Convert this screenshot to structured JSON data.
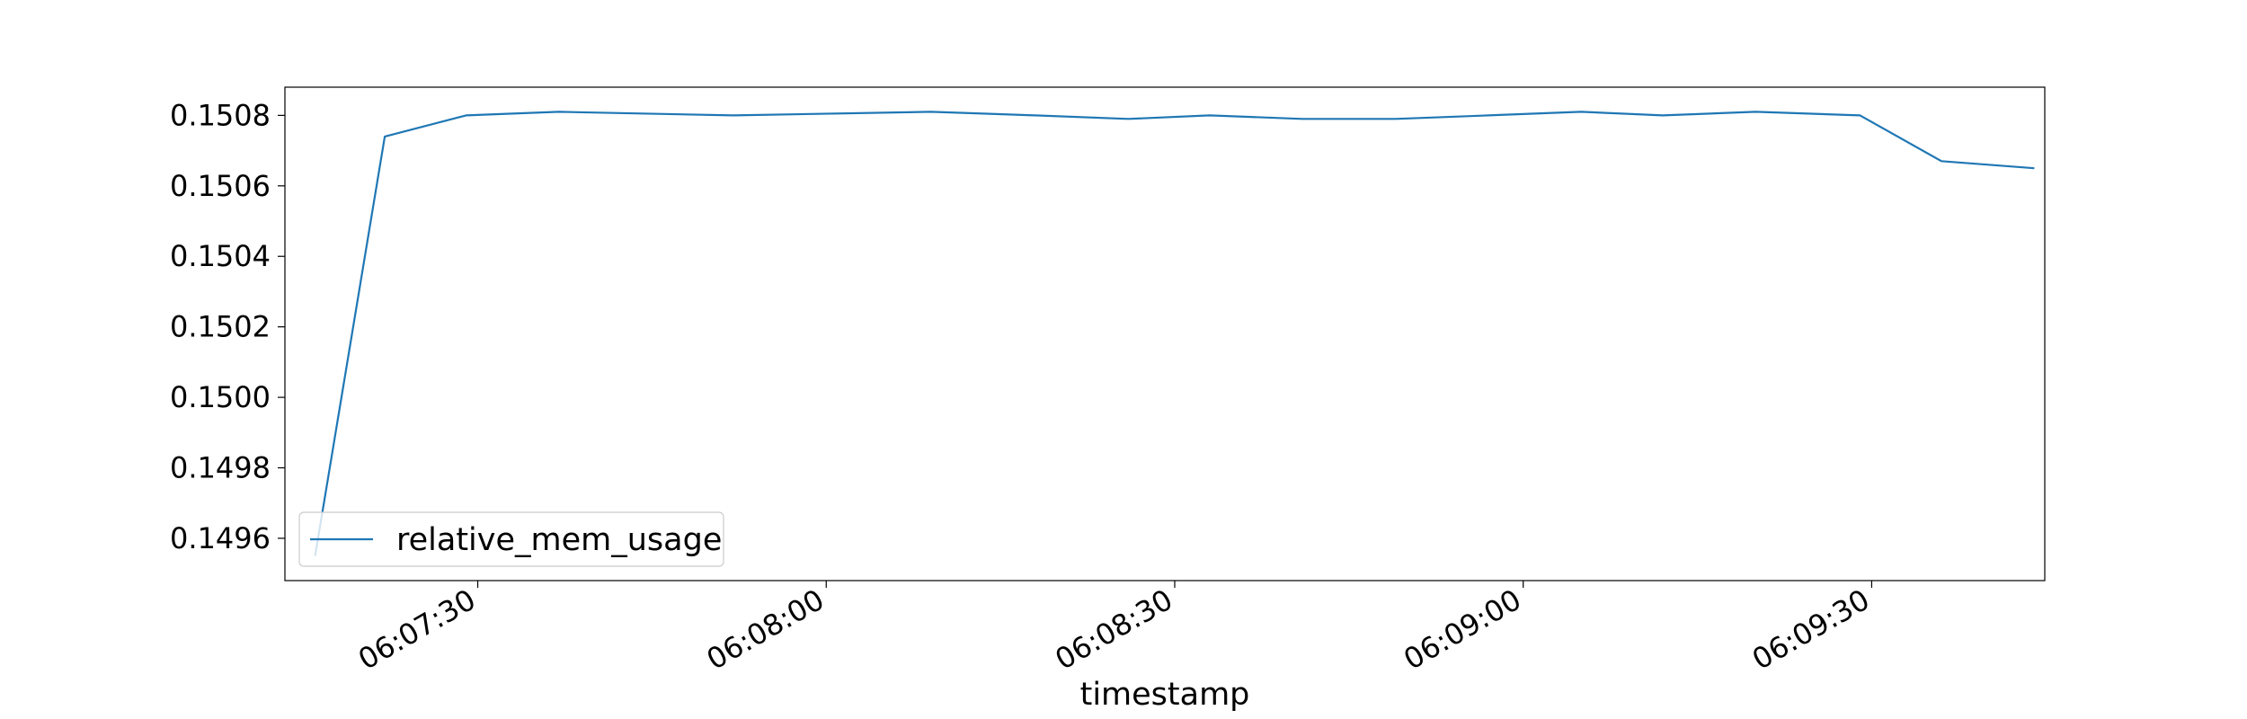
{
  "chart_data": {
    "type": "line",
    "title": "",
    "xlabel": "timestamp",
    "ylabel": "",
    "x": [
      "06:07:16",
      "06:07:22",
      "06:07:29",
      "06:07:37",
      "06:07:52",
      "06:08:09",
      "06:08:18",
      "06:08:26",
      "06:08:33",
      "06:08:41",
      "06:08:49",
      "06:08:57",
      "06:09:05",
      "06:09:12",
      "06:09:20",
      "06:09:29",
      "06:09:36",
      "06:09:44"
    ],
    "xlim": [
      "06:07:13.4",
      "06:09:44.9"
    ],
    "x_ticks": [
      "06:07:30",
      "06:08:00",
      "06:08:30",
      "06:09:00",
      "06:09:30"
    ],
    "ylim": [
      0.14948,
      0.15088
    ],
    "y_ticks": [
      "0.1496",
      "0.1498",
      "0.1500",
      "0.1502",
      "0.1504",
      "0.1506",
      "0.1508"
    ],
    "grid": false,
    "legend_position": "lower-left",
    "series": [
      {
        "name": "relative_mem_usage",
        "color": "#1f77b4",
        "values": [
          0.14955,
          0.15074,
          0.1508,
          0.15081,
          0.1508,
          0.15081,
          0.1508,
          0.15079,
          0.1508,
          0.15079,
          0.15079,
          0.1508,
          0.15081,
          0.1508,
          0.15081,
          0.1508,
          0.15067,
          0.15065
        ]
      }
    ]
  }
}
